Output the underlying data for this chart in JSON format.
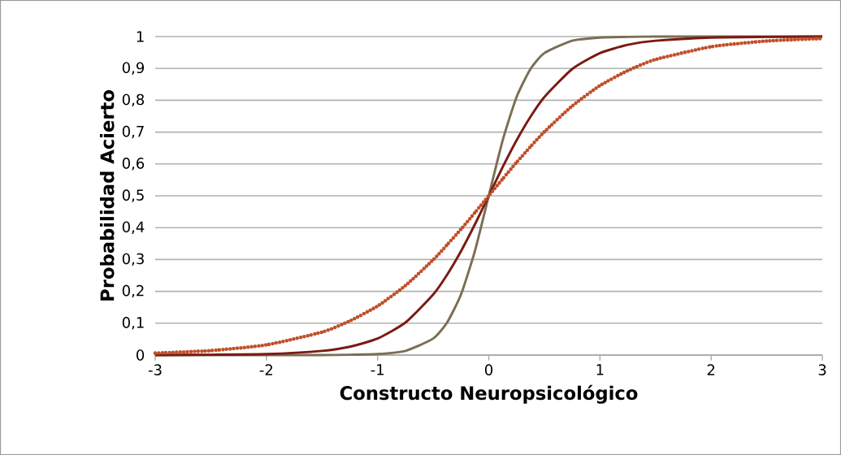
{
  "chart_data": {
    "type": "line",
    "xlabel": "Constructo Neuropsicológico",
    "ylabel": "Probabilidad Acierto",
    "xlim": [
      -3,
      3
    ],
    "ylim": [
      0,
      1
    ],
    "xticks": [
      -3,
      -2,
      -1,
      0,
      1,
      2,
      3
    ],
    "yticks": [
      0,
      {
        "value": 0.1,
        "label": "0,1"
      },
      {
        "value": 0.2,
        "label": "0,2"
      },
      {
        "value": 0.3,
        "label": "0,3"
      },
      {
        "value": 0.4,
        "label": "0,4"
      },
      {
        "value": 0.5,
        "label": "0,5"
      },
      {
        "value": 0.6,
        "label": "0,6"
      },
      {
        "value": 0.7,
        "label": "0,7"
      },
      {
        "value": 0.8,
        "label": "0,8"
      },
      {
        "value": 0.9,
        "label": "0,9"
      },
      1
    ],
    "grid": "y",
    "legend": false,
    "marker": "none",
    "x": [
      -3,
      -2.5,
      -2,
      -1.5,
      -1.25,
      -1,
      -0.75,
      -0.5,
      -0.375,
      -0.25,
      -0.125,
      0,
      0.125,
      0.25,
      0.375,
      0.5,
      0.75,
      1,
      1.25,
      1.5,
      2,
      2.5,
      3
    ],
    "series": [
      {
        "color": "#7a6e55",
        "line_style": "solid",
        "values": [
          0,
          0,
          0,
          0,
          0.001,
          0.003,
          0.013,
          0.052,
          0.102,
          0.19,
          0.326,
          0.5,
          0.674,
          0.81,
          0.898,
          0.948,
          0.987,
          0.997,
          0.999,
          1,
          1,
          1,
          1
        ]
      },
      {
        "color": "#7b1a12",
        "line_style": "solid",
        "values": [
          0,
          0.001,
          0.003,
          0.013,
          0.026,
          0.052,
          0.102,
          0.19,
          0.252,
          0.326,
          0.41,
          0.5,
          0.59,
          0.674,
          0.748,
          0.81,
          0.898,
          0.948,
          0.974,
          0.987,
          0.997,
          0.999,
          1
        ]
      },
      {
        "color": "#c0502a",
        "line_style": "dotted",
        "values": [
          0.006,
          0.014,
          0.032,
          0.072,
          0.107,
          0.154,
          0.218,
          0.299,
          0.346,
          0.395,
          0.447,
          0.5,
          0.553,
          0.605,
          0.654,
          0.701,
          0.782,
          0.846,
          0.893,
          0.928,
          0.968,
          0.986,
          0.994
        ]
      }
    ]
  }
}
